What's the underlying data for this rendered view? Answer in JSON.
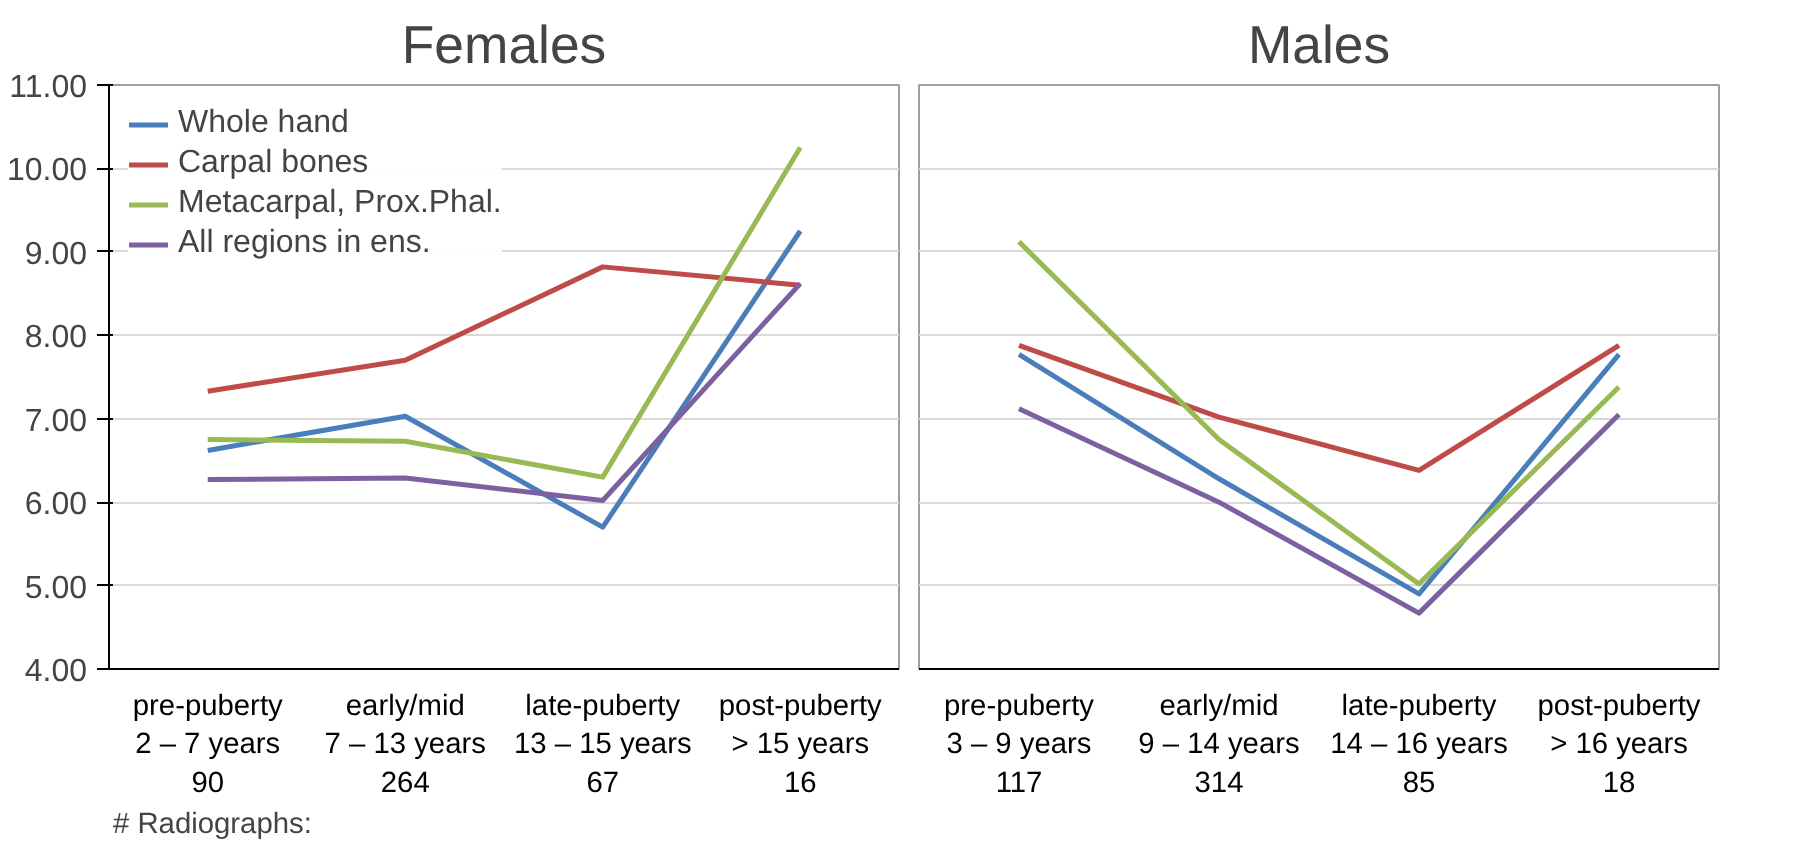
{
  "chart_data": [
    {
      "type": "line",
      "title": "Females",
      "categories": [
        "pre-puberty\n2 – 7 years\n90",
        "early/mid\n7 – 13 years\n264",
        "late-puberty\n13 – 15 years\n67",
        "post-puberty\n> 15 years\n16"
      ],
      "series": [
        {
          "name": "Whole hand",
          "color": "#4a7ebb",
          "values": [
            6.62,
            7.03,
            5.7,
            9.25
          ]
        },
        {
          "name": "Carpal bones",
          "color": "#be4b48",
          "values": [
            7.33,
            7.7,
            8.82,
            8.6
          ]
        },
        {
          "name": "Metacarpal, Prox.Phal.",
          "color": "#98b954",
          "values": [
            6.75,
            6.73,
            6.3,
            10.25
          ]
        },
        {
          "name": "All regions in ens.",
          "color": "#7d60a0",
          "values": [
            6.27,
            6.29,
            6.02,
            8.62
          ]
        }
      ],
      "ylim": [
        4,
        11
      ],
      "yticks": [
        {
          "value": 4,
          "label": "4.00"
        },
        {
          "value": 5,
          "label": "5.00"
        },
        {
          "value": 6,
          "label": "6.00"
        },
        {
          "value": 7,
          "label": "7.00"
        },
        {
          "value": 8,
          "label": "8.00"
        },
        {
          "value": 9,
          "label": "9.00"
        },
        {
          "value": 10,
          "label": "10.00"
        },
        {
          "value": 11,
          "label": "11.00"
        }
      ],
      "legend": "top left",
      "grid": "y",
      "annotations": [
        "# Radiographs:"
      ]
    },
    {
      "type": "line",
      "title": "Males",
      "categories": [
        "pre-puberty\n3 – 9 years\n117",
        "early/mid\n9 – 14 years\n314",
        "late-puberty\n14 – 16 years\n85",
        "post-puberty\n> 16 years\n18"
      ],
      "series": [
        {
          "color": "#4a7ebb",
          "values": [
            7.77,
            6.28,
            4.9,
            7.77
          ]
        },
        {
          "color": "#be4b48",
          "values": [
            7.88,
            7.02,
            6.38,
            7.88
          ]
        },
        {
          "color": "#98b954",
          "values": [
            9.12,
            6.75,
            5.02,
            7.38
          ]
        },
        {
          "color": "#7d60a0",
          "values": [
            7.12,
            6.0,
            4.67,
            7.05
          ]
        }
      ],
      "ylim": [
        4,
        11
      ],
      "yticks": [
        4,
        5,
        6,
        7,
        8,
        9,
        10,
        11
      ],
      "grid": "y",
      "tick_labels": "x"
    }
  ]
}
